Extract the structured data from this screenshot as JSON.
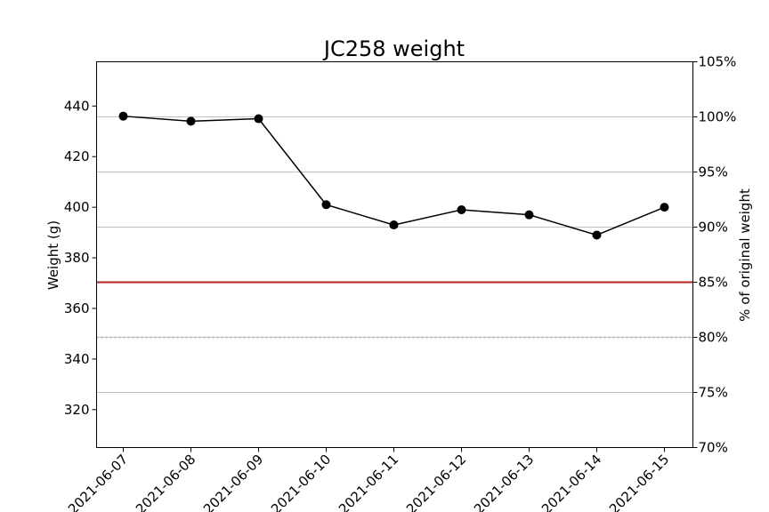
{
  "chart_data": {
    "type": "line",
    "title": "JC258 weight",
    "xlabel": "",
    "ylabel": "Weight (g)",
    "y2label": "% of original weight",
    "x": [
      "2021-06-07",
      "2021-06-08",
      "2021-06-09",
      "2021-06-10",
      "2021-06-11",
      "2021-06-12",
      "2021-06-13",
      "2021-06-14",
      "2021-06-15"
    ],
    "series": [
      {
        "values": [
          436,
          434,
          435,
          401,
          393,
          399,
          397,
          389,
          400
        ],
        "color": "#000000"
      }
    ],
    "ylim": [
      305,
      457.5
    ],
    "yticks": [
      320,
      340,
      360,
      380,
      400,
      420,
      440
    ],
    "y2lim": [
      70,
      105
    ],
    "y2ticks": [
      70,
      75,
      80,
      85,
      90,
      95,
      100,
      105
    ],
    "y2tick_suffix": "%",
    "threshold_lines": [
      {
        "y2": 85,
        "color": "#b22222",
        "style": "solid"
      },
      {
        "y2": 80,
        "color": "#bbbbbb",
        "style": "dotted"
      }
    ],
    "grid": "horizontal lines at secondary-axis ticks",
    "legend": "none"
  }
}
